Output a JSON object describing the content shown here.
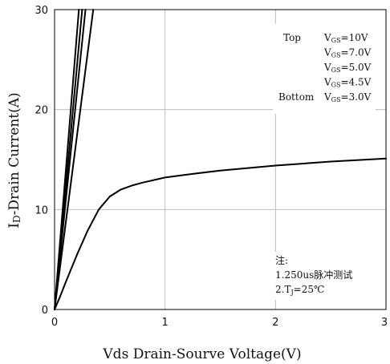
{
  "chart_data": {
    "type": "line",
    "xlabel": "Vds Drain-Sourve Voltage(V)",
    "ylabel_prefix": "I",
    "ylabel_sub": "D",
    "ylabel_rest": "-Drain Current(A)",
    "xlim": [
      0,
      3
    ],
    "ylim": [
      0,
      30
    ],
    "xticks": [
      "0",
      "1",
      "2",
      "3"
    ],
    "yticks": [
      "0",
      "10",
      "20",
      "30"
    ],
    "grid": true,
    "legend": {
      "placement": "top-right",
      "entries": [
        {
          "label": "Top",
          "prefix": "V",
          "sub": "GS",
          "value": "=10V"
        },
        {
          "label": "",
          "prefix": "V",
          "sub": "GS",
          "value": "=7.0V"
        },
        {
          "label": "",
          "prefix": "V",
          "sub": "GS",
          "value": "=5.0V"
        },
        {
          "label": "",
          "prefix": "V",
          "sub": "GS",
          "value": "=4.5V"
        },
        {
          "label": "Bottom",
          "prefix": "V",
          "sub": "GS",
          "value": "=3.0V"
        }
      ]
    },
    "notes": {
      "title": "注:",
      "line1": "1.250us脉冲测试",
      "line2_prefix": "2.T",
      "line2_sub": "J",
      "line2_rest": "=25℃"
    },
    "series": [
      {
        "x": [
          0,
          0.22
        ],
        "y": [
          0,
          30
        ]
      },
      {
        "x": [
          0,
          0.25
        ],
        "y": [
          0,
          30
        ]
      },
      {
        "x": [
          0,
          0.28
        ],
        "y": [
          0,
          30
        ]
      },
      {
        "x": [
          0,
          0.35
        ],
        "y": [
          0,
          30
        ]
      },
      {
        "x": [
          0,
          0.05,
          0.1,
          0.2,
          0.3,
          0.4,
          0.5,
          0.6,
          0.7,
          0.8,
          1.0,
          1.2,
          1.5,
          2.0,
          2.5,
          3.0
        ],
        "y": [
          0,
          1.3,
          2.7,
          5.4,
          7.9,
          10.0,
          11.3,
          12.0,
          12.4,
          12.7,
          13.2,
          13.5,
          13.9,
          14.4,
          14.8,
          15.1
        ]
      }
    ]
  }
}
